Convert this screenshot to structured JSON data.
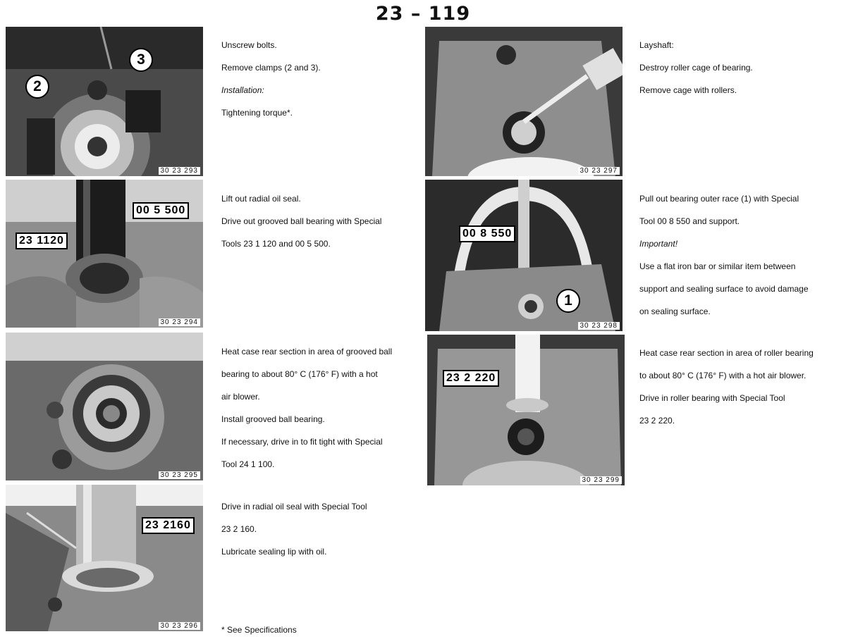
{
  "page_number": "23 – 119",
  "photos": [
    {
      "id": "photo-1",
      "number": "30 23 293",
      "labels": [
        "2",
        "3"
      ]
    },
    {
      "id": "photo-2",
      "number": "30 23 294",
      "labels": [
        "00 5 500",
        "23 1120"
      ]
    },
    {
      "id": "photo-3",
      "number": "30 23 295",
      "labels": []
    },
    {
      "id": "photo-4",
      "number": "30 23 296",
      "labels": [
        "23 2160"
      ]
    },
    {
      "id": "photo-5",
      "number": "30 23 297",
      "labels": []
    },
    {
      "id": "photo-6",
      "number": "30 23 298",
      "labels": [
        "00 8 550",
        "1"
      ]
    },
    {
      "id": "photo-7",
      "number": "30 23 299",
      "labels": [
        "23 2 220"
      ]
    }
  ],
  "steps": [
    {
      "lines": [
        "Unscrew bolts.",
        "Remove clamps (2 and 3).",
        "Installation:",
        "Tightening torque*."
      ]
    },
    {
      "lines": [
        "Lift out radial oil seal.",
        "Drive out grooved ball bearing with Special",
        "Tools 23 1 120 and 00 5 500."
      ]
    },
    {
      "lines": [
        "Heat case rear section in area of grooved ball",
        "bearing to about 80° C (176° F) with a hot",
        "air blower.",
        "Install grooved ball bearing.",
        "If necessary, drive in to fit tight with Special",
        "Tool 24 1 100."
      ]
    },
    {
      "lines": [
        "Drive in radial oil seal with Special Tool",
        "23 2 160.",
        "Lubricate sealing lip with oil."
      ]
    },
    {
      "lines": [
        "Layshaft:",
        "Destroy roller cage of bearing.",
        "Remove cage with rollers."
      ]
    },
    {
      "lines": [
        "Pull out bearing outer race (1) with Special",
        "Tool 00 8 550 and support.",
        "Important!",
        "Use a flat iron bar or similar item between",
        "support and sealing surface to avoid damage",
        "on sealing surface."
      ]
    },
    {
      "lines": [
        "Heat case rear section in area of roller bearing",
        "to about 80° C (176° F) with a hot air blower.",
        "Drive in roller bearing with Special Tool",
        "23 2 220."
      ]
    }
  ],
  "footnote": "* See Specifications"
}
